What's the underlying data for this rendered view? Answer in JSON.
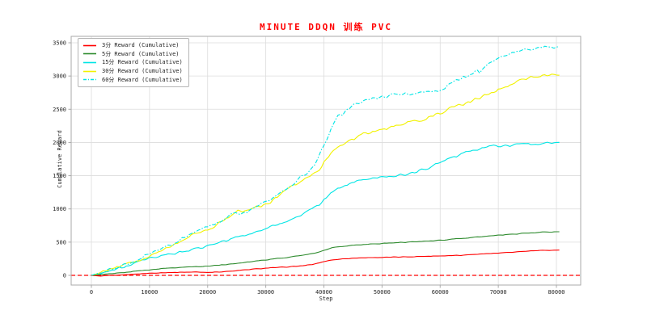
{
  "chart_data": {
    "type": "line",
    "title": "MINUTE DDQN 训练 PVC",
    "title_color": "#ff0000",
    "xlabel": "Step",
    "ylabel": "Cumulative Reward",
    "x_ticks": [
      0,
      10000,
      20000,
      30000,
      40000,
      50000,
      60000,
      70000,
      80000
    ],
    "y_ticks": [
      0,
      500,
      1000,
      1500,
      2000,
      2500,
      3000,
      3500
    ],
    "xlim": [
      -3500,
      84200
    ],
    "ylim": [
      -150,
      3600
    ],
    "grid": true,
    "legend_position": "upper-left",
    "background": "#ffffff",
    "grid_color": "#dcdcdc",
    "spine_color": "#aaaaaa",
    "zero_line": {
      "y": 0,
      "color": "#ff0000",
      "style": "dashed"
    },
    "series": [
      {
        "label": "3分 Reward (Cumulative)",
        "color": "#ff0000",
        "style": "solid",
        "noise": 5,
        "points": [
          [
            0,
            0
          ],
          [
            1500,
            -12
          ],
          [
            3000,
            -5
          ],
          [
            5000,
            5
          ],
          [
            8000,
            22
          ],
          [
            10000,
            32
          ],
          [
            12000,
            40
          ],
          [
            15000,
            46
          ],
          [
            18000,
            50
          ],
          [
            20000,
            46
          ],
          [
            22000,
            52
          ],
          [
            24000,
            62
          ],
          [
            26000,
            78
          ],
          [
            28000,
            95
          ],
          [
            30000,
            108
          ],
          [
            32000,
            118
          ],
          [
            34000,
            128
          ],
          [
            36000,
            142
          ],
          [
            38000,
            162
          ],
          [
            39500,
            195
          ],
          [
            41000,
            228
          ],
          [
            42500,
            242
          ],
          [
            44000,
            254
          ],
          [
            46000,
            262
          ],
          [
            48000,
            268
          ],
          [
            50000,
            270
          ],
          [
            53000,
            276
          ],
          [
            56000,
            283
          ],
          [
            59000,
            291
          ],
          [
            62000,
            299
          ],
          [
            64000,
            305
          ],
          [
            66000,
            318
          ],
          [
            68000,
            326
          ],
          [
            70000,
            336
          ],
          [
            72000,
            347
          ],
          [
            74000,
            359
          ],
          [
            76000,
            369
          ],
          [
            78000,
            375
          ],
          [
            80500,
            380
          ]
        ]
      },
      {
        "label": "5分 Reward (Cumulative)",
        "color": "#2e8b2e",
        "style": "solid",
        "noise": 6,
        "points": [
          [
            0,
            0
          ],
          [
            2000,
            14
          ],
          [
            4000,
            30
          ],
          [
            6000,
            48
          ],
          [
            8000,
            66
          ],
          [
            10000,
            84
          ],
          [
            12000,
            100
          ],
          [
            14000,
            114
          ],
          [
            16000,
            124
          ],
          [
            18000,
            131
          ],
          [
            20000,
            140
          ],
          [
            22000,
            154
          ],
          [
            24000,
            170
          ],
          [
            26000,
            192
          ],
          [
            28000,
            214
          ],
          [
            30000,
            234
          ],
          [
            32000,
            254
          ],
          [
            34000,
            272
          ],
          [
            36000,
            300
          ],
          [
            38000,
            330
          ],
          [
            39500,
            360
          ],
          [
            41000,
            408
          ],
          [
            42500,
            430
          ],
          [
            44000,
            446
          ],
          [
            46000,
            458
          ],
          [
            48000,
            470
          ],
          [
            50000,
            480
          ],
          [
            52000,
            489
          ],
          [
            54000,
            497
          ],
          [
            56000,
            507
          ],
          [
            58000,
            517
          ],
          [
            60000,
            529
          ],
          [
            62000,
            544
          ],
          [
            64000,
            558
          ],
          [
            66000,
            573
          ],
          [
            68000,
            588
          ],
          [
            70000,
            602
          ],
          [
            72000,
            616
          ],
          [
            74000,
            629
          ],
          [
            76000,
            641
          ],
          [
            78000,
            650
          ],
          [
            80500,
            656
          ]
        ]
      },
      {
        "label": "15分 Reward (Cumulative)",
        "color": "#00e5e5",
        "style": "solid",
        "noise": 22,
        "points": [
          [
            0,
            0
          ],
          [
            2000,
            45
          ],
          [
            4000,
            85
          ],
          [
            6000,
            135
          ],
          [
            8000,
            195
          ],
          [
            10000,
            252
          ],
          [
            12000,
            292
          ],
          [
            14000,
            330
          ],
          [
            16000,
            362
          ],
          [
            18000,
            400
          ],
          [
            20000,
            440
          ],
          [
            22000,
            492
          ],
          [
            24000,
            542
          ],
          [
            26000,
            600
          ],
          [
            28000,
            652
          ],
          [
            30000,
            702
          ],
          [
            32000,
            762
          ],
          [
            34000,
            832
          ],
          [
            36000,
            902
          ],
          [
            38000,
            1002
          ],
          [
            39500,
            1080
          ],
          [
            41000,
            1220
          ],
          [
            42500,
            1310
          ],
          [
            44000,
            1368
          ],
          [
            45000,
            1398
          ],
          [
            46000,
            1420
          ],
          [
            47000,
            1440
          ],
          [
            48000,
            1458
          ],
          [
            50000,
            1478
          ],
          [
            52000,
            1498
          ],
          [
            54000,
            1520
          ],
          [
            56000,
            1560
          ],
          [
            58000,
            1622
          ],
          [
            60000,
            1700
          ],
          [
            62000,
            1762
          ],
          [
            64000,
            1840
          ],
          [
            66000,
            1888
          ],
          [
            68000,
            1928
          ],
          [
            70000,
            1948
          ],
          [
            72000,
            1960
          ],
          [
            74000,
            1970
          ],
          [
            76000,
            1980
          ],
          [
            78000,
            1988
          ],
          [
            80500,
            2000
          ]
        ]
      },
      {
        "label": "30分 Reward (Cumulative)",
        "color": "#f2f200",
        "style": "solid",
        "noise": 28,
        "points": [
          [
            0,
            0
          ],
          [
            2000,
            55
          ],
          [
            4000,
            105
          ],
          [
            6000,
            165
          ],
          [
            8000,
            225
          ],
          [
            10000,
            302
          ],
          [
            12000,
            362
          ],
          [
            14000,
            452
          ],
          [
            16000,
            542
          ],
          [
            18000,
            622
          ],
          [
            20000,
            682
          ],
          [
            21000,
            722
          ],
          [
            21800,
            795
          ],
          [
            23000,
            822
          ],
          [
            24000,
            902
          ],
          [
            24800,
            952
          ],
          [
            26000,
            972
          ],
          [
            27000,
            1000
          ],
          [
            28000,
            1022
          ],
          [
            29000,
            1042
          ],
          [
            30000,
            1062
          ],
          [
            32000,
            1182
          ],
          [
            34000,
            1302
          ],
          [
            36000,
            1422
          ],
          [
            38000,
            1532
          ],
          [
            39500,
            1625
          ],
          [
            41000,
            1822
          ],
          [
            42500,
            1932
          ],
          [
            44000,
            2022
          ],
          [
            45500,
            2072
          ],
          [
            47000,
            2132
          ],
          [
            48500,
            2165
          ],
          [
            50000,
            2200
          ],
          [
            52000,
            2242
          ],
          [
            54000,
            2282
          ],
          [
            56000,
            2322
          ],
          [
            58000,
            2382
          ],
          [
            60000,
            2442
          ],
          [
            62000,
            2522
          ],
          [
            64000,
            2582
          ],
          [
            66000,
            2642
          ],
          [
            68000,
            2722
          ],
          [
            70000,
            2792
          ],
          [
            71500,
            2842
          ],
          [
            73000,
            2902
          ],
          [
            74500,
            2945
          ],
          [
            76000,
            2990
          ],
          [
            77000,
            3000
          ],
          [
            78500,
            3010
          ],
          [
            80500,
            3015
          ]
        ]
      },
      {
        "label": "60分 Reward (Cumulative)",
        "color": "#00e5e5",
        "style": "dashdot",
        "noise": 30,
        "points": [
          [
            0,
            0
          ],
          [
            1000,
            30
          ],
          [
            2000,
            62
          ],
          [
            3000,
            92
          ],
          [
            4000,
            115
          ],
          [
            5000,
            142
          ],
          [
            6000,
            172
          ],
          [
            7000,
            205
          ],
          [
            8000,
            242
          ],
          [
            9000,
            285
          ],
          [
            10000,
            332
          ],
          [
            11000,
            362
          ],
          [
            12000,
            392
          ],
          [
            13000,
            432
          ],
          [
            14000,
            472
          ],
          [
            15000,
            522
          ],
          [
            16000,
            562
          ],
          [
            17000,
            602
          ],
          [
            18000,
            642
          ],
          [
            19000,
            682
          ],
          [
            20000,
            722
          ],
          [
            21000,
            765
          ],
          [
            21500,
            802
          ],
          [
            22200,
            792
          ],
          [
            23000,
            852
          ],
          [
            24000,
            902
          ],
          [
            25000,
            942
          ],
          [
            25800,
            922
          ],
          [
            27000,
            962
          ],
          [
            28000,
            1032
          ],
          [
            29000,
            1062
          ],
          [
            30000,
            1092
          ],
          [
            31000,
            1152
          ],
          [
            32000,
            1205
          ],
          [
            33000,
            1262
          ],
          [
            34000,
            1322
          ],
          [
            35000,
            1402
          ],
          [
            36000,
            1472
          ],
          [
            37000,
            1542
          ],
          [
            38000,
            1622
          ],
          [
            39000,
            1752
          ],
          [
            40000,
            1952
          ],
          [
            41000,
            2155
          ],
          [
            42000,
            2355
          ],
          [
            42600,
            2452
          ],
          [
            43200,
            2425
          ],
          [
            44000,
            2502
          ],
          [
            45000,
            2552
          ],
          [
            46000,
            2602
          ],
          [
            47000,
            2625
          ],
          [
            48000,
            2652
          ],
          [
            49000,
            2672
          ],
          [
            50000,
            2692
          ],
          [
            51000,
            2702
          ],
          [
            52000,
            2722
          ],
          [
            53000,
            2702
          ],
          [
            54000,
            2722
          ],
          [
            55000,
            2705
          ],
          [
            56000,
            2732
          ],
          [
            57000,
            2742
          ],
          [
            58000,
            2752
          ],
          [
            59000,
            2762
          ],
          [
            60000,
            2782
          ],
          [
            61000,
            2822
          ],
          [
            62000,
            2882
          ],
          [
            63000,
            2942
          ],
          [
            64000,
            2992
          ],
          [
            64600,
            2962
          ],
          [
            65200,
            3022
          ],
          [
            65800,
            3062
          ],
          [
            66400,
            3102
          ],
          [
            66900,
            3042
          ],
          [
            67400,
            3102
          ],
          [
            68000,
            3152
          ],
          [
            69000,
            3202
          ],
          [
            70000,
            3252
          ],
          [
            71000,
            3302
          ],
          [
            72000,
            3342
          ],
          [
            73000,
            3362
          ],
          [
            74000,
            3382
          ],
          [
            75000,
            3402
          ],
          [
            76200,
            3402
          ],
          [
            77000,
            3422
          ],
          [
            78000,
            3432
          ],
          [
            79000,
            3422
          ],
          [
            80500,
            3448
          ]
        ]
      }
    ]
  }
}
